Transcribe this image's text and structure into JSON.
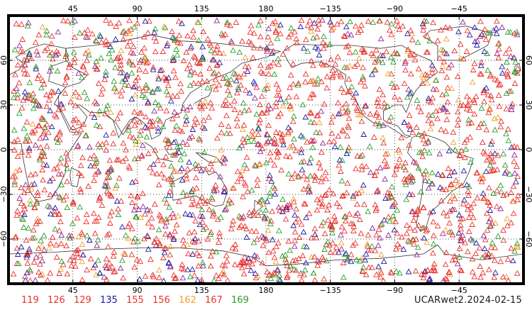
{
  "map": {
    "projection": "cylindrical-equidistant",
    "lon_range": [
      0,
      360
    ],
    "lat_range": [
      -90,
      90
    ],
    "top_ticks": [
      "45",
      "90",
      "135",
      "180",
      "−135",
      "−90",
      "−45"
    ],
    "bottom_ticks": [
      "45",
      "90",
      "135",
      "180",
      "−135",
      "−90",
      "−45"
    ],
    "left_ticks": [
      "60",
      "30",
      "0",
      "−30",
      "−60"
    ],
    "right_ticks": [
      "60",
      "30",
      "0",
      "−30",
      "−60"
    ],
    "grid": true,
    "grid_style": "dotted",
    "marker_shape": "triangle-outline",
    "observation_density": "dense-global"
  },
  "legend": [
    {
      "label": "119",
      "color": "#e8322c"
    },
    {
      "label": "126",
      "color": "#e8322c"
    },
    {
      "label": "129",
      "color": "#e8322c"
    },
    {
      "label": "135",
      "color": "#1a1aa6"
    },
    {
      "label": "155",
      "color": "#e8322c"
    },
    {
      "label": "156",
      "color": "#e8322c"
    },
    {
      "label": "162",
      "color": "#f0a030"
    },
    {
      "label": "167",
      "color": "#e8322c"
    },
    {
      "label": "169",
      "color": "#2aa02a"
    }
  ],
  "product_label": "UCARwet2.2024-02-15",
  "colors": {
    "frame": "#000000",
    "coast": "#333333",
    "grid": "#000000",
    "red": "#e8322c",
    "blue": "#1a1aa6",
    "green": "#2aa02a",
    "orange": "#f0a030",
    "purple": "#8a2a9a"
  }
}
